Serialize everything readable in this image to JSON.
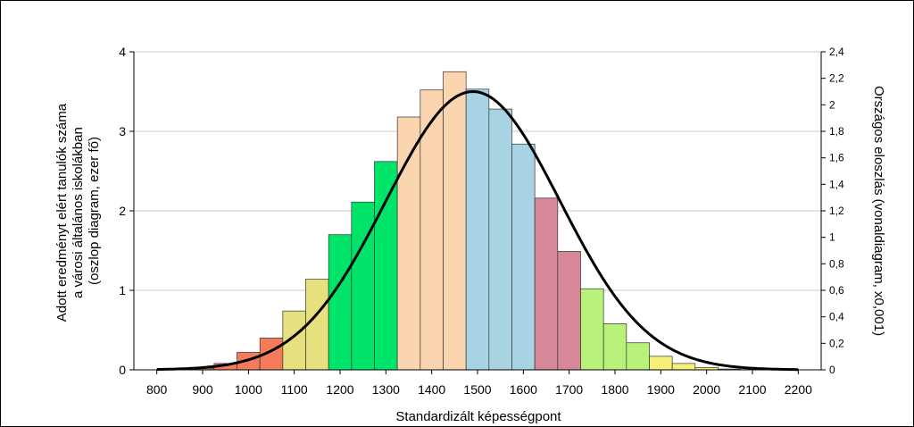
{
  "chart_data": {
    "type": "bar",
    "title": "",
    "xlabel": "Standardizált képességpont",
    "ylabel_lines": [
      "Adott eredményt elért tanulók száma",
      "a városi általános iskolákban",
      "(oszlop diagram, ezer fő)"
    ],
    "y2label": "Országos eloszlás (vonaldiagram, x0,001)",
    "xlim": [
      750,
      2250
    ],
    "ylim": [
      0,
      4
    ],
    "y2lim": [
      0,
      2.4
    ],
    "x_ticks": [
      "800",
      "900",
      "1000",
      "1100",
      "1200",
      "1300",
      "1400",
      "1500",
      "1600",
      "1700",
      "1800",
      "1900",
      "2000",
      "2100",
      "2200"
    ],
    "y_ticks": [
      "0",
      "1",
      "2",
      "3",
      "4"
    ],
    "y2_ticks": [
      "0",
      "0,2",
      "0,4",
      "0,6",
      "0,8",
      "1",
      "1,2",
      "1,4",
      "1,6",
      "1,8",
      "2",
      "2,2",
      "2,4"
    ],
    "grid": "horizontal",
    "bar_width": 50,
    "bars": [
      {
        "x": 800,
        "value": 0.0,
        "color": "#f47c5a"
      },
      {
        "x": 850,
        "value": 0.0,
        "color": "#f47c5a"
      },
      {
        "x": 900,
        "value": 0.02,
        "color": "#f47c5a"
      },
      {
        "x": 950,
        "value": 0.08,
        "color": "#f47c5a"
      },
      {
        "x": 1000,
        "value": 0.22,
        "color": "#f47c5a"
      },
      {
        "x": 1050,
        "value": 0.4,
        "color": "#f47c5a"
      },
      {
        "x": 1100,
        "value": 0.74,
        "color": "#e6e07e"
      },
      {
        "x": 1150,
        "value": 1.14,
        "color": "#e6e07e"
      },
      {
        "x": 1200,
        "value": 1.7,
        "color": "#00e46a"
      },
      {
        "x": 1250,
        "value": 2.11,
        "color": "#00e46a"
      },
      {
        "x": 1300,
        "value": 2.62,
        "color": "#00e46a"
      },
      {
        "x": 1350,
        "value": 3.18,
        "color": "#fbd5b0"
      },
      {
        "x": 1400,
        "value": 3.52,
        "color": "#fbd5b0"
      },
      {
        "x": 1450,
        "value": 3.75,
        "color": "#fbd5b0"
      },
      {
        "x": 1500,
        "value": 3.53,
        "color": "#a7d3e3"
      },
      {
        "x": 1550,
        "value": 3.28,
        "color": "#a7d3e3"
      },
      {
        "x": 1600,
        "value": 2.84,
        "color": "#a7d3e3"
      },
      {
        "x": 1650,
        "value": 2.16,
        "color": "#d78898"
      },
      {
        "x": 1700,
        "value": 1.49,
        "color": "#d78898"
      },
      {
        "x": 1750,
        "value": 1.02,
        "color": "#b9f27a"
      },
      {
        "x": 1800,
        "value": 0.58,
        "color": "#b9f27a"
      },
      {
        "x": 1850,
        "value": 0.34,
        "color": "#b9f27a"
      },
      {
        "x": 1900,
        "value": 0.17,
        "color": "#f4f07a"
      },
      {
        "x": 1950,
        "value": 0.08,
        "color": "#f4f07a"
      },
      {
        "x": 2000,
        "value": 0.03,
        "color": "#f4f07a"
      },
      {
        "x": 2050,
        "value": 0.01,
        "color": "#f4f07a"
      }
    ],
    "curve": {
      "name": "Országos eloszlás",
      "axis": "y2",
      "mean": 1490,
      "sd": 190,
      "peak": 2.1,
      "color": "#000000"
    }
  }
}
